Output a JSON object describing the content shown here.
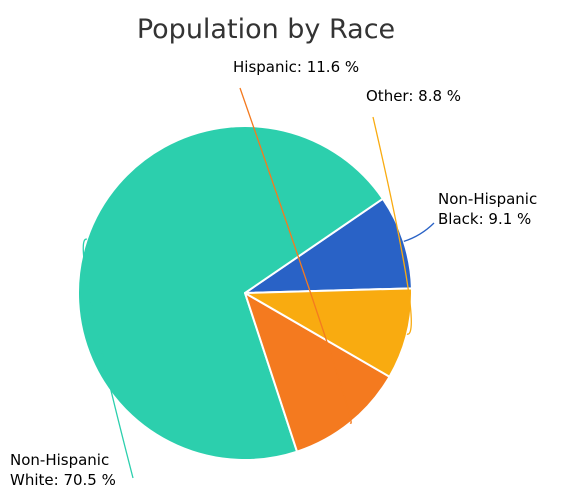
{
  "chart_data": {
    "type": "pie",
    "title": "Population by Race",
    "unit": "%",
    "slices": [
      {
        "name": "Non-Hispanic Black",
        "label_lines": [
          "Non-Hispanic",
          "Black: 9.1 %"
        ],
        "value": 9.1,
        "color": "#2962c6"
      },
      {
        "name": "Non-Hispanic White",
        "label_lines": [
          "Non-Hispanic",
          "White: 70.5 %"
        ],
        "value": 70.5,
        "color": "#2ccfad"
      },
      {
        "name": "Hispanic",
        "label_lines": [
          "Hispanic: 11.6 %"
        ],
        "value": 11.6,
        "color": "#f47a1f"
      },
      {
        "name": "Other",
        "label_lines": [
          "Other: 8.8 %"
        ],
        "value": 8.8,
        "color": "#f9ab10"
      }
    ]
  }
}
